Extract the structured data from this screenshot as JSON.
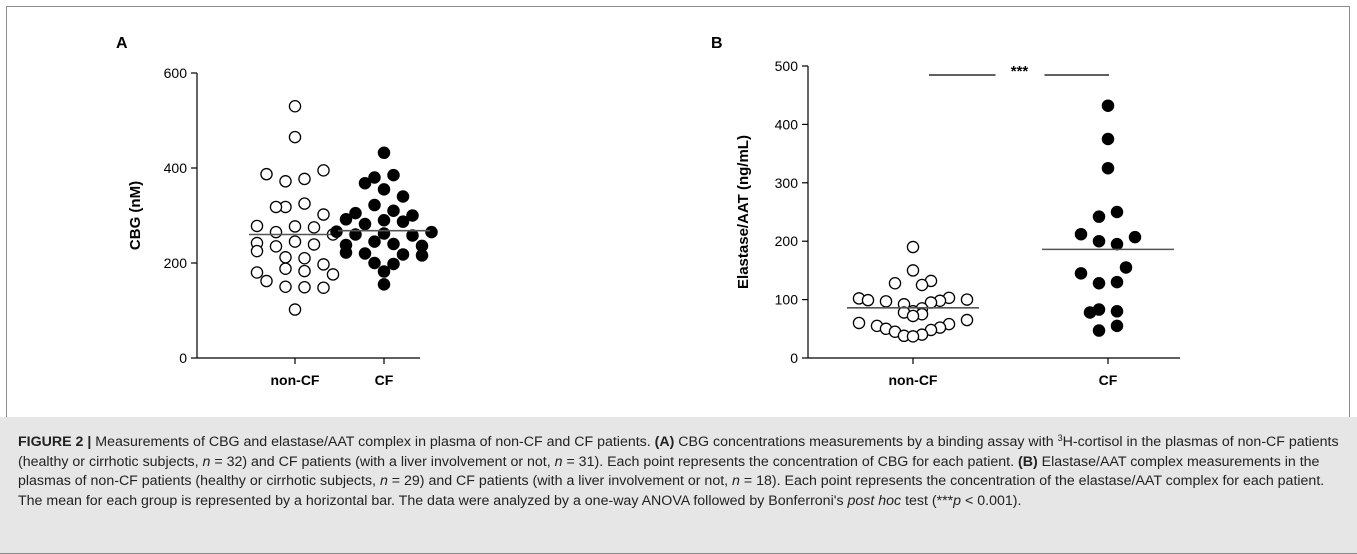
{
  "figure": {
    "caption": {
      "figure_label": "FIGURE 2 |",
      "text_1": " Measurements of CBG and elastase/AAT complex in plasma of non-CF and CF patients. ",
      "a_ref": "(A)",
      "text_2": " CBG concentrations measurements by a binding assay with ",
      "sup_3": "3",
      "text_3": "H-cortisol in the plasmas of non-CF patients (healthy or cirrhotic subjects, ",
      "n_var_1": "n",
      "text_4": " = 32) and CF patients (with a liver involvement or not, ",
      "n_var_2": "n",
      "text_5": " = 31). Each point represents the concentration of CBG for each patient. ",
      "b_ref": "(B)",
      "text_6": " Elastase/AAT complex measurements in the plasmas of non-CF patients (healthy or cirrhotic subjects, ",
      "n_var_3": "n",
      "text_7": " = 29) and CF patients (with a liver involvement or not, ",
      "n_var_4": "n",
      "text_8": " = 18). Each point represents the concentration of the elastase/AAT complex for each patient. The mean for each group is represented by a horizontal bar. The data were analyzed by a one-way ANOVA followed by Bonferroni's ",
      "post_hoc": "post hoc",
      "text_9": " test (***",
      "p_var": "p",
      "text_10": " < 0.001)."
    }
  },
  "chart_data": [
    {
      "panel": "A",
      "type": "scatter",
      "title": "",
      "xlabel": "",
      "ylabel": "CBG (nM)",
      "categories": [
        "non-CF",
        "CF"
      ],
      "ylim": [
        0,
        600
      ],
      "yticks": [
        0,
        200,
        400,
        600
      ],
      "grid": false,
      "series": [
        {
          "category": "non-CF",
          "marker": "open-circle",
          "mean": 260,
          "points": [
            {
              "v": 530,
              "o": 0
            },
            {
              "v": 465,
              "o": 0
            },
            {
              "v": 395,
              "o": 3
            },
            {
              "v": 387,
              "o": -3
            },
            {
              "v": 377,
              "o": 1
            },
            {
              "v": 372,
              "o": -1
            },
            {
              "v": 325,
              "o": 1
            },
            {
              "v": 318,
              "o": -1
            },
            {
              "v": 318,
              "o": -2
            },
            {
              "v": 302,
              "o": 3
            },
            {
              "v": 278,
              "o": -4
            },
            {
              "v": 277,
              "o": 0
            },
            {
              "v": 275,
              "o": 2
            },
            {
              "v": 265,
              "o": -2
            },
            {
              "v": 260,
              "o": 4
            },
            {
              "v": 245,
              "o": 0
            },
            {
              "v": 242,
              "o": -4
            },
            {
              "v": 239,
              "o": 2
            },
            {
              "v": 235,
              "o": -2
            },
            {
              "v": 225,
              "o": -4
            },
            {
              "v": 212,
              "o": -1
            },
            {
              "v": 210,
              "o": 1
            },
            {
              "v": 197,
              "o": 3
            },
            {
              "v": 188,
              "o": -1
            },
            {
              "v": 183,
              "o": 1
            },
            {
              "v": 180,
              "o": -4
            },
            {
              "v": 176,
              "o": 4
            },
            {
              "v": 162,
              "o": -3
            },
            {
              "v": 150,
              "o": -1
            },
            {
              "v": 149,
              "o": 1
            },
            {
              "v": 148,
              "o": 3
            },
            {
              "v": 102,
              "o": 0
            }
          ]
        },
        {
          "category": "CF",
          "marker": "filled-circle",
          "mean": 268,
          "points": [
            {
              "v": 432,
              "o": 0
            },
            {
              "v": 385,
              "o": 1
            },
            {
              "v": 380,
              "o": -1
            },
            {
              "v": 368,
              "o": -2
            },
            {
              "v": 355,
              "o": 0
            },
            {
              "v": 340,
              "o": 2
            },
            {
              "v": 322,
              "o": -1
            },
            {
              "v": 310,
              "o": 1
            },
            {
              "v": 305,
              "o": -3
            },
            {
              "v": 300,
              "o": 3
            },
            {
              "v": 292,
              "o": -4
            },
            {
              "v": 290,
              "o": 0
            },
            {
              "v": 287,
              "o": 2
            },
            {
              "v": 282,
              "o": -2
            },
            {
              "v": 266,
              "o": -5
            },
            {
              "v": 265,
              "o": 5
            },
            {
              "v": 262,
              "o": 0
            },
            {
              "v": 260,
              "o": -3
            },
            {
              "v": 258,
              "o": 3
            },
            {
              "v": 245,
              "o": -1
            },
            {
              "v": 240,
              "o": 1
            },
            {
              "v": 238,
              "o": -4
            },
            {
              "v": 236,
              "o": 4
            },
            {
              "v": 222,
              "o": -4
            },
            {
              "v": 220,
              "o": -2
            },
            {
              "v": 218,
              "o": 2
            },
            {
              "v": 216,
              "o": 4
            },
            {
              "v": 200,
              "o": -1
            },
            {
              "v": 198,
              "o": 1
            },
            {
              "v": 182,
              "o": 0
            },
            {
              "v": 155,
              "o": 0
            }
          ]
        }
      ]
    },
    {
      "panel": "B",
      "type": "scatter",
      "title": "",
      "xlabel": "",
      "ylabel": "Elastase/AAT (ng/mL)",
      "categories": [
        "non-CF",
        "CF"
      ],
      "ylim": [
        0,
        500
      ],
      "yticks": [
        0,
        100,
        200,
        300,
        400,
        500
      ],
      "grid": false,
      "significance": "***",
      "series": [
        {
          "category": "non-CF",
          "marker": "open-circle",
          "mean": 86,
          "points": [
            {
              "v": 190,
              "o": 0
            },
            {
              "v": 150,
              "o": 0
            },
            {
              "v": 132,
              "o": 2
            },
            {
              "v": 128,
              "o": -2
            },
            {
              "v": 125,
              "o": 1
            },
            {
              "v": 103,
              "o": 4
            },
            {
              "v": 102,
              "o": -6
            },
            {
              "v": 100,
              "o": 6
            },
            {
              "v": 99,
              "o": -5
            },
            {
              "v": 98,
              "o": 3
            },
            {
              "v": 97,
              "o": -3
            },
            {
              "v": 95,
              "o": 2
            },
            {
              "v": 92,
              "o": -1
            },
            {
              "v": 85,
              "o": 1
            },
            {
              "v": 80,
              "o": 0
            },
            {
              "v": 78,
              "o": -1
            },
            {
              "v": 75,
              "o": 1
            },
            {
              "v": 72,
              "o": 0
            },
            {
              "v": 65,
              "o": 6
            },
            {
              "v": 60,
              "o": -6
            },
            {
              "v": 58,
              "o": 4
            },
            {
              "v": 55,
              "o": -4
            },
            {
              "v": 52,
              "o": 3
            },
            {
              "v": 50,
              "o": -3
            },
            {
              "v": 48,
              "o": 2
            },
            {
              "v": 45,
              "o": -2
            },
            {
              "v": 40,
              "o": 1
            },
            {
              "v": 38,
              "o": -1
            },
            {
              "v": 37,
              "o": 0
            }
          ]
        },
        {
          "category": "CF",
          "marker": "filled-circle",
          "mean": 186,
          "points": [
            {
              "v": 432,
              "o": 0
            },
            {
              "v": 375,
              "o": 0
            },
            {
              "v": 325,
              "o": 0
            },
            {
              "v": 250,
              "o": 1
            },
            {
              "v": 242,
              "o": -1
            },
            {
              "v": 212,
              "o": -3
            },
            {
              "v": 207,
              "o": 3
            },
            {
              "v": 200,
              "o": -1
            },
            {
              "v": 195,
              "o": 1
            },
            {
              "v": 155,
              "o": 2
            },
            {
              "v": 145,
              "o": -3
            },
            {
              "v": 130,
              "o": 1
            },
            {
              "v": 128,
              "o": -1
            },
            {
              "v": 83,
              "o": -1
            },
            {
              "v": 80,
              "o": 1
            },
            {
              "v": 78,
              "o": -2
            },
            {
              "v": 55,
              "o": 1
            },
            {
              "v": 47,
              "o": -1
            }
          ]
        }
      ]
    }
  ]
}
